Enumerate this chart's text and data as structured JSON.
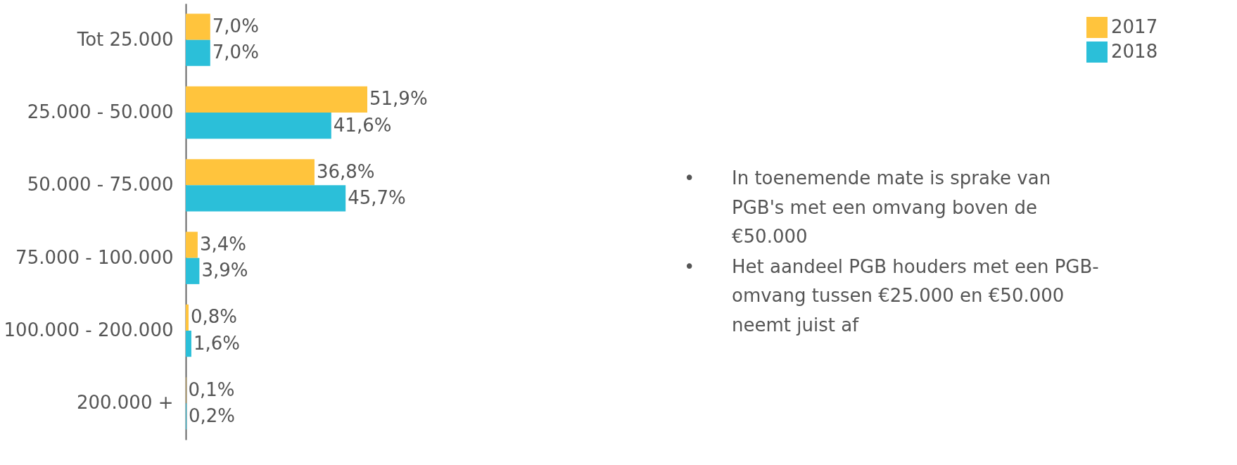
{
  "chart_data": {
    "type": "bar",
    "orientation": "horizontal",
    "legend": "top right",
    "categories": [
      "Tot 25.000",
      "25.000 - 50.000",
      "50.000 - 75.000",
      "75.000 - 100.000",
      "100.000 - 200.000",
      "200.000 +"
    ],
    "series": [
      {
        "name": "2017",
        "color": "#ffc43d",
        "values": [
          7.0,
          51.9,
          36.8,
          3.4,
          0.8,
          0.1
        ],
        "value_labels": [
          "7,0%",
          "51,9%",
          "36,8%",
          "3,4%",
          "0,8%",
          "0,1%"
        ]
      },
      {
        "name": "2018",
        "color": "#2bbfd9",
        "values": [
          7.0,
          41.6,
          45.7,
          3.9,
          1.6,
          0.2
        ],
        "value_labels": [
          "7,0%",
          "41,6%",
          "45,7%",
          "3,9%",
          "1,6%",
          "0,2%"
        ]
      }
    ],
    "annotations": [
      "• In toenemende mate is sprake van PGB's met een omvang boven de €50.000",
      "• Het aandeel PGB houders met een PGB-omvang tussen €25.000 en €50.000 neemt juist af"
    ]
  }
}
